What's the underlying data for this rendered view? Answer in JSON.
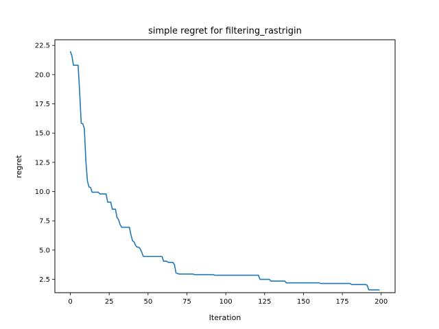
{
  "chart_data": {
    "type": "line",
    "title": "simple regret for filtering_rastrigin",
    "xlabel": "Iteration",
    "ylabel": "regret",
    "xlim": [
      -9.95,
      208.95
    ],
    "ylim": [
      1.36,
      22.98
    ],
    "xticks": [
      0,
      25,
      50,
      75,
      100,
      125,
      150,
      175,
      200
    ],
    "yticks": [
      2.5,
      5.0,
      7.5,
      10.0,
      12.5,
      15.0,
      17.5,
      20.0,
      22.5
    ],
    "xtick_labels": [
      "0",
      "25",
      "50",
      "75",
      "100",
      "125",
      "150",
      "175",
      "200"
    ],
    "ytick_labels": [
      "2.5",
      "5.0",
      "7.5",
      "10.0",
      "12.5",
      "15.0",
      "17.5",
      "20.0",
      "22.5"
    ],
    "grid": false,
    "series": [
      {
        "color": "#1f77b4",
        "points": [
          [
            0,
            22.0
          ],
          [
            1,
            21.6
          ],
          [
            2,
            20.8
          ],
          [
            3,
            20.8
          ],
          [
            4,
            20.8
          ],
          [
            5,
            20.8
          ],
          [
            6,
            18.5
          ],
          [
            7,
            15.85
          ],
          [
            8,
            15.8
          ],
          [
            9,
            15.4
          ],
          [
            10,
            12.6
          ],
          [
            11,
            10.9
          ],
          [
            12,
            10.4
          ],
          [
            13,
            10.35
          ],
          [
            14,
            9.95
          ],
          [
            15,
            9.95
          ],
          [
            16,
            9.95
          ],
          [
            17,
            9.95
          ],
          [
            18,
            9.95
          ],
          [
            19,
            9.8
          ],
          [
            20,
            9.8
          ],
          [
            21,
            9.8
          ],
          [
            22,
            9.8
          ],
          [
            23,
            9.8
          ],
          [
            24,
            9.1
          ],
          [
            25,
            9.1
          ],
          [
            26,
            9.1
          ],
          [
            27,
            8.5
          ],
          [
            28,
            8.5
          ],
          [
            29,
            8.5
          ],
          [
            30,
            7.8
          ],
          [
            31,
            7.6
          ],
          [
            32,
            7.2
          ],
          [
            33,
            6.95
          ],
          [
            34,
            6.95
          ],
          [
            35,
            6.95
          ],
          [
            36,
            6.95
          ],
          [
            37,
            6.95
          ],
          [
            38,
            6.95
          ],
          [
            39,
            6.3
          ],
          [
            40,
            5.8
          ],
          [
            41,
            5.7
          ],
          [
            42,
            5.4
          ],
          [
            43,
            5.25
          ],
          [
            44,
            5.25
          ],
          [
            45,
            5.1
          ],
          [
            46,
            4.8
          ],
          [
            47,
            4.45
          ],
          [
            50,
            4.45
          ],
          [
            55,
            4.45
          ],
          [
            58,
            4.45
          ],
          [
            59,
            4.45
          ],
          [
            60,
            4.05
          ],
          [
            62,
            4.05
          ],
          [
            63,
            3.95
          ],
          [
            65,
            3.95
          ],
          [
            66,
            3.95
          ],
          [
            67,
            3.75
          ],
          [
            68,
            3.05
          ],
          [
            69,
            3.0
          ],
          [
            70,
            2.95
          ],
          [
            75,
            2.95
          ],
          [
            79,
            2.95
          ],
          [
            80,
            2.9
          ],
          [
            85,
            2.9
          ],
          [
            92,
            2.9
          ],
          [
            93,
            2.85
          ],
          [
            100,
            2.85
          ],
          [
            110,
            2.85
          ],
          [
            120,
            2.85
          ],
          [
            121,
            2.85
          ],
          [
            122,
            2.5
          ],
          [
            128,
            2.5
          ],
          [
            129,
            2.35
          ],
          [
            138,
            2.35
          ],
          [
            139,
            2.2
          ],
          [
            150,
            2.2
          ],
          [
            160,
            2.2
          ],
          [
            161,
            2.15
          ],
          [
            175,
            2.15
          ],
          [
            180,
            2.15
          ],
          [
            181,
            2.05
          ],
          [
            190,
            2.05
          ],
          [
            191,
            2.0
          ],
          [
            192,
            1.6
          ],
          [
            199,
            1.6
          ]
        ]
      }
    ]
  }
}
